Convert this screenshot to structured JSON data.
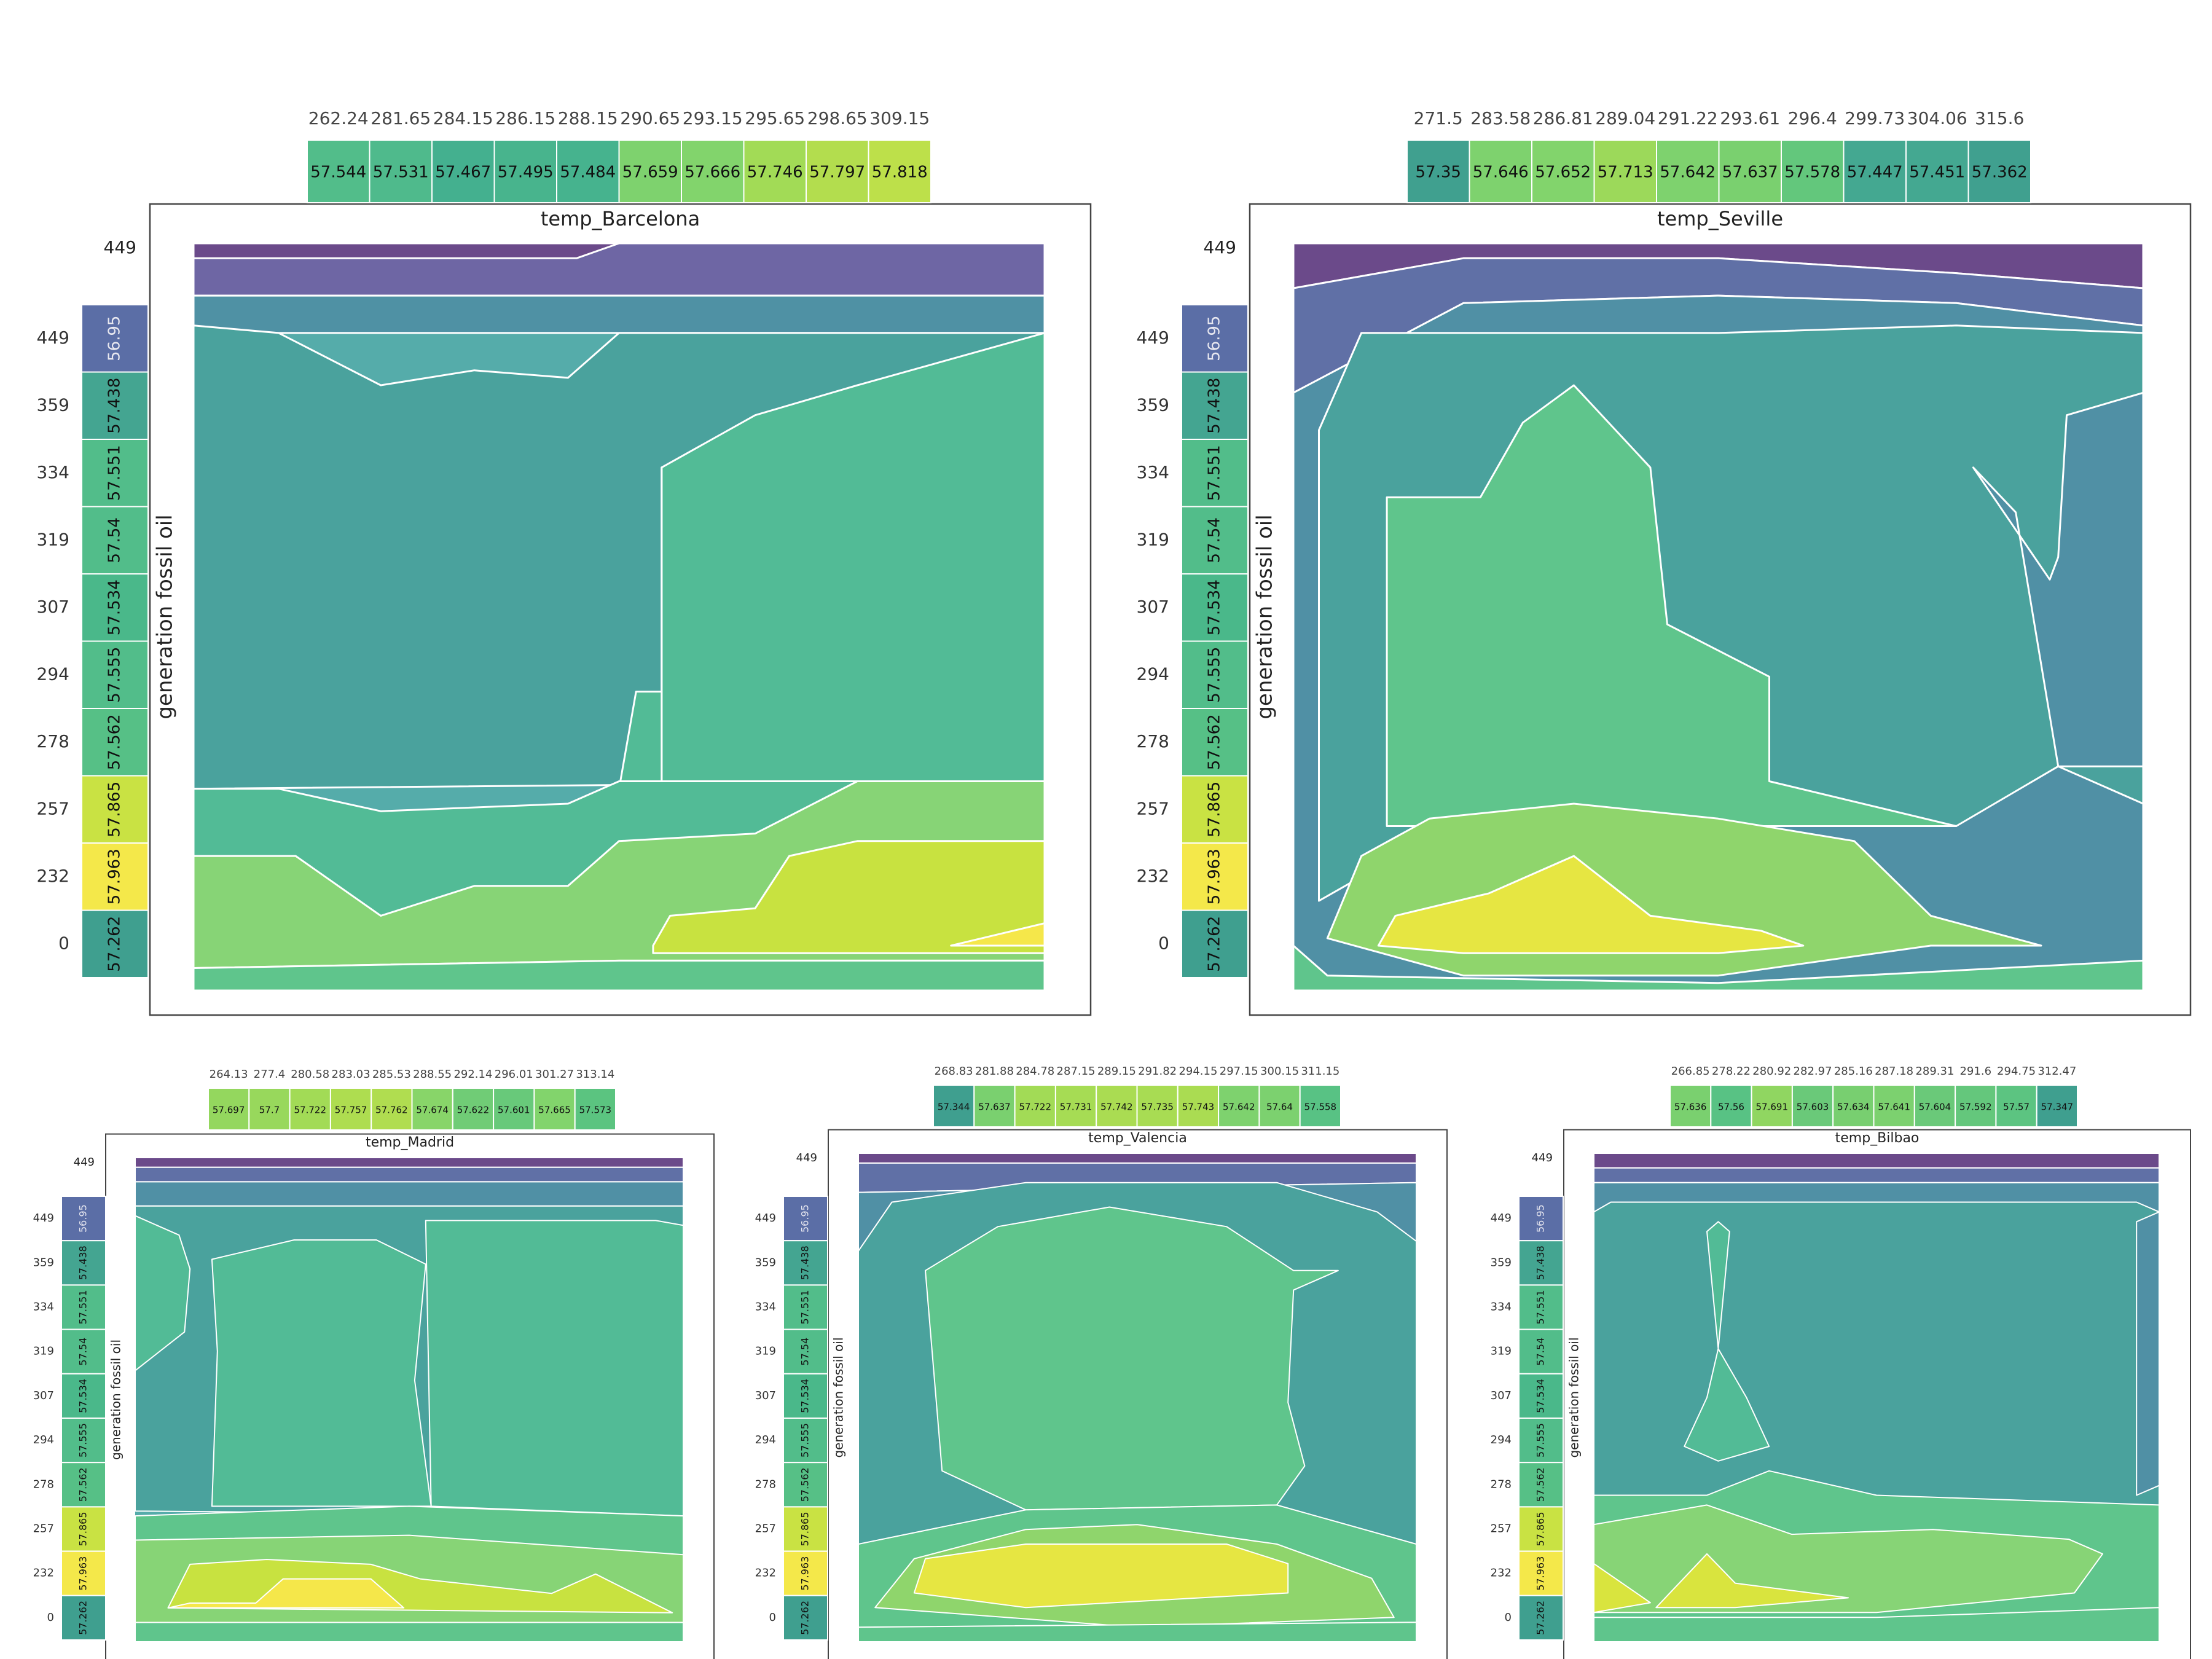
{
  "y_label": "generation fossil oil",
  "row_labels": [
    "449",
    "359",
    "334",
    "319",
    "307",
    "294",
    "278",
    "257",
    "232",
    "0"
  ],
  "row_values": [
    56.95,
    57.438,
    57.551,
    57.54,
    57.534,
    57.555,
    57.562,
    57.865,
    57.963,
    57.262
  ],
  "row_colors": [
    "#5b6ea6",
    "#44a591",
    "#52bd8a",
    "#52bd8a",
    "#4ab88a",
    "#52bd8a",
    "#56c086",
    "#c9e243",
    "#f4e84a",
    "#3f9f8f"
  ],
  "chart_data": [
    {
      "type": "heatmap",
      "title": "temp_Barcelona",
      "x_labels": [
        "262.24",
        "281.65",
        "284.15",
        "286.15",
        "288.15",
        "290.65",
        "293.15",
        "295.65",
        "298.65",
        "309.15"
      ],
      "x_values": [
        57.544,
        57.531,
        57.467,
        57.495,
        57.484,
        57.659,
        57.666,
        57.746,
        57.797,
        57.818
      ],
      "x_colors": [
        "#52bd8a",
        "#4fba8c",
        "#44b08f",
        "#48b48d",
        "#46b38e",
        "#7ed26e",
        "#82d46c",
        "#a2db56",
        "#b3dd4e",
        "#bde04a"
      ],
      "ylabel": "generation fossil oil",
      "top_tick": "449"
    },
    {
      "type": "heatmap",
      "title": "temp_Seville",
      "x_labels": [
        "271.5",
        "283.58",
        "286.81",
        "289.04",
        "291.22",
        "293.61",
        "296.4",
        "299.73",
        "304.06",
        "315.6"
      ],
      "x_values": [
        57.35,
        57.646,
        57.652,
        57.713,
        57.642,
        57.637,
        57.578,
        57.447,
        57.451,
        57.362
      ],
      "x_colors": [
        "#40a08f",
        "#7ed26e",
        "#82d46c",
        "#9cd95a",
        "#7ed26e",
        "#7ad06f",
        "#63c77c",
        "#44a891",
        "#44a891",
        "#40a08f"
      ],
      "ylabel": "generation fossil oil",
      "top_tick": "449"
    },
    {
      "type": "heatmap",
      "title": "temp_Madrid",
      "x_labels": [
        "264.13",
        "277.4",
        "280.58",
        "283.03",
        "285.53",
        "288.55",
        "292.14",
        "296.01",
        "301.27",
        "313.14"
      ],
      "x_values": [
        57.697,
        57.7,
        57.722,
        57.757,
        57.762,
        57.674,
        57.622,
        57.601,
        57.665,
        57.573
      ],
      "x_colors": [
        "#94d75e",
        "#98d85c",
        "#a2db56",
        "#aedd50",
        "#b0dd50",
        "#88d569",
        "#70cc76",
        "#68c97a",
        "#82d46c",
        "#5bc480"
      ],
      "ylabel": "generation fossil oil",
      "top_tick": "449"
    },
    {
      "type": "heatmap",
      "title": "temp_Valencia",
      "x_labels": [
        "268.83",
        "281.88",
        "284.78",
        "287.15",
        "289.15",
        "291.82",
        "294.15",
        "297.15",
        "300.15",
        "311.15"
      ],
      "x_values": [
        57.344,
        57.637,
        57.722,
        57.731,
        57.742,
        57.735,
        57.743,
        57.642,
        57.64,
        57.558
      ],
      "x_colors": [
        "#3f9f8f",
        "#7ad06f",
        "#a2db56",
        "#a6dc54",
        "#aadc52",
        "#a8dc53",
        "#aadc52",
        "#7ed26e",
        "#7cd16f",
        "#58c284"
      ],
      "ylabel": "generation fossil oil",
      "top_tick": "449"
    },
    {
      "type": "heatmap",
      "title": "temp_Bilbao",
      "x_labels": [
        "266.85",
        "278.22",
        "280.92",
        "282.97",
        "285.16",
        "287.18",
        "289.31",
        "291.6",
        "294.75",
        "312.47"
      ],
      "x_values": [
        57.636,
        57.56,
        57.691,
        57.603,
        57.634,
        57.641,
        57.604,
        57.592,
        57.57,
        57.347
      ],
      "x_colors": [
        "#7ad06f",
        "#58c284",
        "#90d661",
        "#6ac979",
        "#78cf70",
        "#7cd16f",
        "#6ac979",
        "#64c77c",
        "#5cc481",
        "#3f9f8f"
      ],
      "ylabel": "generation fossil oil",
      "top_tick": "449"
    }
  ]
}
